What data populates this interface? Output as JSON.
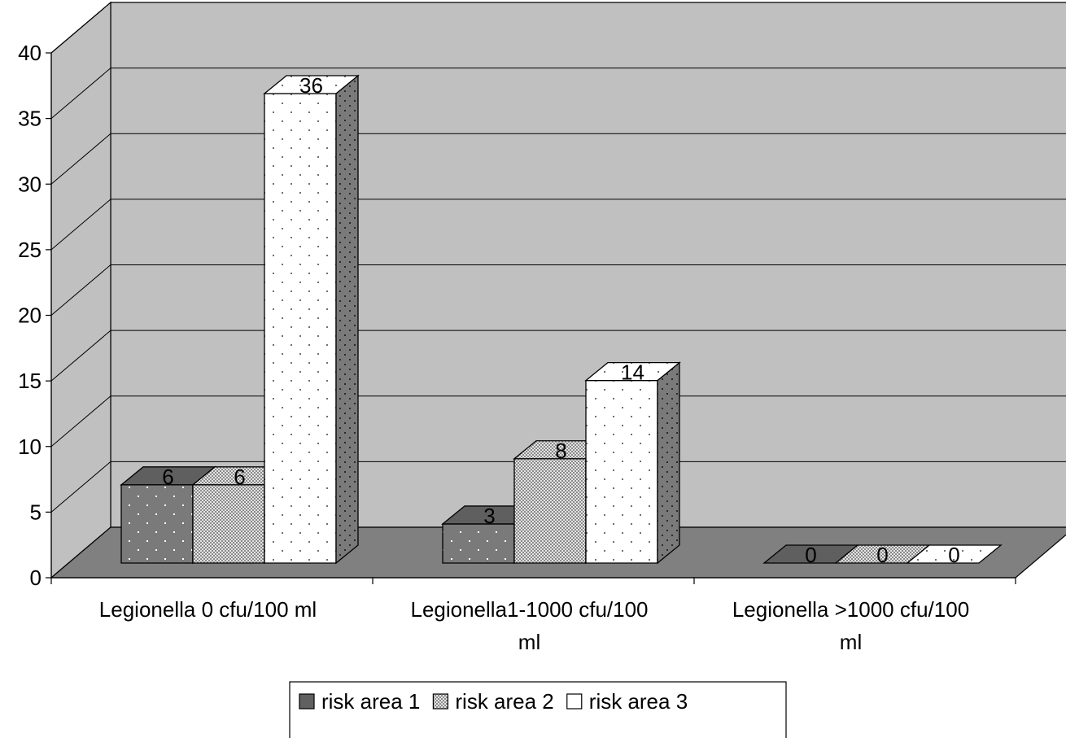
{
  "chart_data": {
    "type": "bar",
    "categories": [
      [
        "Legionella 0 cfu/100 ml"
      ],
      [
        "Legionella1-1000 cfu/100",
        "ml"
      ],
      [
        "Legionella >1000 cfu/100",
        "ml"
      ]
    ],
    "series": [
      {
        "name": "risk area 1",
        "values": [
          6,
          3,
          0
        ]
      },
      {
        "name": "risk area 2",
        "values": [
          6,
          8,
          0
        ]
      },
      {
        "name": "risk area 3",
        "values": [
          36,
          14,
          0
        ]
      }
    ],
    "ylim": [
      0,
      40
    ],
    "yticks": [
      0,
      5,
      10,
      15,
      20,
      25,
      30,
      35,
      40
    ],
    "grid": true,
    "legend_position": "bottom",
    "style": "3d-clustered-column",
    "colors": {
      "wall": "#c0c0c0",
      "floor": "#808080",
      "series1": "#808080",
      "series2": "#c8c8c8",
      "series3": "#ffffff"
    }
  }
}
